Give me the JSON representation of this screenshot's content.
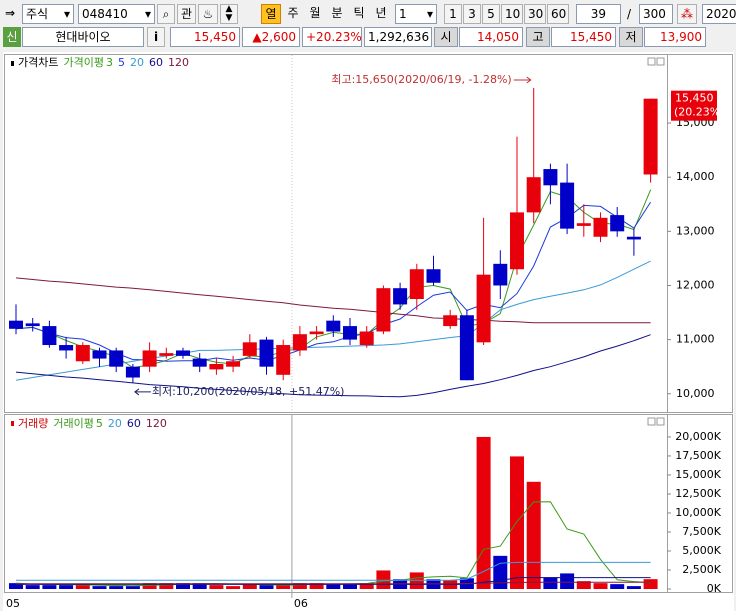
{
  "toolbar": {
    "market": "주식",
    "code": "048410",
    "watch": "관",
    "periods": [
      "열",
      "주",
      "월",
      "분",
      "틱",
      "년"
    ],
    "interval": "1",
    "intervals": [
      "1",
      "3",
      "5",
      "10",
      "30",
      "60"
    ],
    "count": "39",
    "separator": "/",
    "total": "300",
    "date": "2020/"
  },
  "info_bar": {
    "badge": "신",
    "name": "현대바이오",
    "info": "i",
    "price": "15,450",
    "change": "▲2,600",
    "rate": "+20.23%",
    "volume": "1,292,636",
    "open_label": "시",
    "open": "14,050",
    "high_label": "고",
    "high": "15,450",
    "low_label": "저",
    "low": "13,900"
  },
  "chart_data": [
    {
      "type": "candlestick",
      "title": "가격차트",
      "ma_label": "가격이평",
      "colors": {
        "up": "#e8000b",
        "down": "#0000c8"
      },
      "open": [
        11350,
        11300,
        11250,
        10900,
        10600,
        10800,
        10800,
        10500,
        10500,
        10700,
        10800,
        10650,
        10450,
        10500,
        10700,
        11000,
        10350,
        10800,
        11100,
        11350,
        11250,
        10900,
        11150,
        11950,
        11750,
        12300,
        11250,
        11450,
        10950,
        12400,
        12300,
        13350,
        14150,
        13900,
        13100,
        12900,
        13300,
        12900,
        14050
      ],
      "high": [
        11650,
        11400,
        11350,
        11050,
        10950,
        10850,
        10850,
        10550,
        10950,
        10850,
        10850,
        10750,
        10650,
        10700,
        11100,
        11050,
        11000,
        11250,
        11250,
        11450,
        11400,
        11250,
        12000,
        12050,
        12400,
        12550,
        11550,
        11550,
        13250,
        12650,
        14750,
        15650,
        14250,
        14250,
        13500,
        13350,
        13450,
        13050,
        15450
      ],
      "low": [
        11100,
        11150,
        10850,
        10650,
        10550,
        10500,
        10400,
        10200,
        10400,
        10650,
        10650,
        10400,
        10350,
        10400,
        10650,
        10350,
        10250,
        10700,
        11000,
        11050,
        10900,
        10850,
        11100,
        11550,
        11550,
        12000,
        11200,
        10250,
        10900,
        11750,
        12200,
        13150,
        13500,
        12950,
        12900,
        12800,
        12900,
        12550,
        13900
      ],
      "close": [
        11200,
        11250,
        10900,
        10800,
        10900,
        10650,
        10500,
        10300,
        10800,
        10750,
        10700,
        10500,
        10550,
        10600,
        10950,
        10500,
        10900,
        11100,
        11150,
        11150,
        11000,
        11150,
        11950,
        11650,
        12300,
        12050,
        11450,
        10250,
        12200,
        12000,
        13350,
        14000,
        13850,
        13050,
        13150,
        13250,
        13000,
        12850,
        15450
      ],
      "ma": [
        {
          "name": "3",
          "color": "#3a9a1a"
        },
        {
          "name": "5",
          "color": "#1e3adc"
        },
        {
          "name": "20",
          "color": "#3a9ad8",
          "values": [
            10250,
            10300,
            10350,
            10400,
            10450,
            10500,
            10550,
            10600,
            10650,
            10700,
            10750,
            10800,
            10800,
            10810,
            10820,
            10830,
            10840,
            10850,
            10860,
            10870,
            10880,
            10890,
            10900,
            10920,
            10960,
            11000,
            11040,
            11070,
            11300,
            11550,
            11650,
            11740,
            11800,
            11860,
            11920,
            12010,
            12150,
            12300,
            12450
          ]
        },
        {
          "name": "60",
          "color": "#10108a",
          "values": [
            10400,
            10370,
            10340,
            10310,
            10290,
            10260,
            10230,
            10200,
            10170,
            10150,
            10130,
            10100,
            10080,
            10060,
            10040,
            10020,
            10000,
            9980,
            9975,
            9970,
            9965,
            9960,
            9950,
            9945,
            9970,
            10020,
            10080,
            10140,
            10190,
            10260,
            10340,
            10430,
            10500,
            10590,
            10680,
            10790,
            10880,
            10980,
            11090
          ]
        },
        {
          "name": "120",
          "color": "#801840",
          "values": [
            12140,
            12110,
            12080,
            12060,
            12030,
            12000,
            11970,
            11950,
            11920,
            11890,
            11860,
            11830,
            11800,
            11770,
            11740,
            11710,
            11680,
            11640,
            11610,
            11580,
            11560,
            11530,
            11500,
            11470,
            11440,
            11400,
            11390,
            11370,
            11360,
            11340,
            11330,
            11310,
            11310,
            11310,
            11310,
            11310,
            11310,
            11310,
            11310
          ]
        }
      ],
      "max_annotation": "최고:15,650(2020/06/19, -1.28%)",
      "min_annotation": "최저:10,200(2020/05/18, +51.47%)",
      "last_value_label": "15,450",
      "last_change_label": "(20.23%)",
      "ylim": [
        9700,
        15980
      ],
      "yticks": [
        {
          "value": 10000,
          "label": "10,000"
        },
        {
          "value": 11000,
          "label": "11,000"
        },
        {
          "value": 12000,
          "label": "12,000"
        },
        {
          "value": 13000,
          "label": "13,000"
        },
        {
          "value": 14000,
          "label": "14,000"
        },
        {
          "value": 15000,
          "label": "15,000"
        }
      ]
    },
    {
      "type": "bar",
      "title": "거래량",
      "ma_label": "거래이평",
      "categories": [
        "05",
        null,
        null,
        null,
        null,
        null,
        null,
        null,
        null,
        null,
        null,
        null,
        null,
        null,
        null,
        null,
        null,
        "06",
        null,
        null,
        null,
        null,
        null,
        null,
        null,
        null,
        null,
        null,
        null,
        null,
        null,
        null,
        null,
        null,
        null,
        null,
        null,
        null,
        null
      ],
      "values": [
        770,
        510,
        510,
        510,
        510,
        380,
        380,
        380,
        770,
        770,
        770,
        770,
        510,
        380,
        640,
        510,
        510,
        770,
        770,
        640,
        640,
        770,
        2440,
        1280,
        2180,
        1280,
        1150,
        1410,
        20000,
        4360,
        17440,
        14100,
        1540,
        2050,
        1030,
        770,
        640,
        380,
        1293
      ],
      "ma": [
        {
          "name": "5",
          "color": "#3a9a1a"
        },
        {
          "name": "20",
          "color": "#3a9ad8",
          "values": [
            1150,
            1150,
            1150,
            1150,
            1150,
            1150,
            1150,
            1150,
            1150,
            1150,
            1150,
            1150,
            1150,
            1150,
            1150,
            1150,
            1150,
            1150,
            1150,
            1150,
            1150,
            1150,
            1150,
            1150,
            1150,
            1150,
            1150,
            1300,
            2300,
            3400,
            3500,
            3500,
            3500,
            3500,
            3500,
            3500,
            3500,
            3500,
            3500
          ]
        },
        {
          "name": "60",
          "color": "#10108a",
          "values": [
            600,
            600,
            600,
            600,
            600,
            600,
            600,
            600,
            600,
            600,
            600,
            600,
            600,
            600,
            600,
            600,
            600,
            600,
            600,
            600,
            600,
            600,
            600,
            600,
            600,
            600,
            600,
            600,
            900,
            1100,
            1500,
            1500,
            1500,
            1500,
            1500,
            1500,
            1500,
            1500,
            1500
          ]
        },
        {
          "name": "120",
          "color": "#801840",
          "values": [
            700,
            700,
            700,
            700,
            700,
            700,
            700,
            700,
            700,
            700,
            700,
            700,
            700,
            700,
            700,
            700,
            700,
            700,
            700,
            700,
            700,
            700,
            700,
            700,
            700,
            700,
            700,
            720,
            760,
            800,
            850,
            880,
            900,
            900,
            900,
            900,
            900,
            900,
            900
          ]
        }
      ],
      "ylim": [
        0,
        20650
      ],
      "yticks": [
        {
          "value": 0,
          "label": "0K"
        },
        {
          "value": 2500,
          "label": "2,500K"
        },
        {
          "value": 5000,
          "label": "5,000K"
        },
        {
          "value": 7500,
          "label": "7,500K"
        },
        {
          "value": 10000,
          "label": "10,000K"
        },
        {
          "value": 12500,
          "label": "12,500K"
        },
        {
          "value": 15000,
          "label": "15,000K"
        },
        {
          "value": 17500,
          "label": "17,500K"
        },
        {
          "value": 20000,
          "label": "20,000K"
        }
      ]
    }
  ]
}
